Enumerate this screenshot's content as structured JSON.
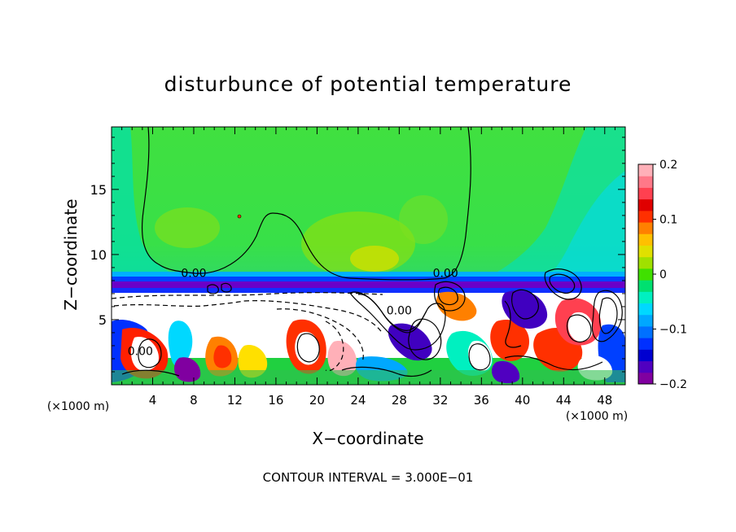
{
  "chart_data": {
    "type": "heatmap",
    "title": "disturbunce of potential temperature",
    "xlabel": "X−coordinate",
    "ylabel": "Z−coordinate",
    "x_unit_left": "(×1000 m)",
    "x_unit_right": "(×1000 m)",
    "footer": "CONTOUR INTERVAL = 3.000E−01",
    "xlim": [
      0,
      50
    ],
    "ylim": [
      0,
      19.8
    ],
    "x_ticks": [
      {
        "v": 4,
        "label": "4"
      },
      {
        "v": 8,
        "label": "8"
      },
      {
        "v": 12,
        "label": "12"
      },
      {
        "v": 16,
        "label": "16"
      },
      {
        "v": 20,
        "label": "20"
      },
      {
        "v": 24,
        "label": "24"
      },
      {
        "v": 28,
        "label": "28"
      },
      {
        "v": 32,
        "label": "32"
      },
      {
        "v": 36,
        "label": "36"
      },
      {
        "v": 40,
        "label": "40"
      },
      {
        "v": 44,
        "label": "44"
      },
      {
        "v": 48,
        "label": "48"
      }
    ],
    "y_ticks": [
      {
        "v": 5,
        "label": "5"
      },
      {
        "v": 10,
        "label": "10"
      },
      {
        "v": 15,
        "label": "15"
      }
    ],
    "colorbar": {
      "min": -0.2,
      "max": 0.2,
      "ticks": [
        {
          "v": 0.2,
          "label": "0.2"
        },
        {
          "v": 0.1,
          "label": "0.1"
        },
        {
          "v": 0,
          "label": "0"
        },
        {
          "v": -0.1,
          "label": "−0.1"
        },
        {
          "v": -0.2,
          "label": "−0.2"
        }
      ],
      "colors": [
        "#8000a0",
        "#5000c0",
        "#0000d0",
        "#0030ff",
        "#0070ff",
        "#00a8ff",
        "#00d8ff",
        "#00f0c0",
        "#00e070",
        "#40e000",
        "#a0e000",
        "#e0e000",
        "#ffc000",
        "#ff8000",
        "#ff3000",
        "#e00000",
        "#ff4050",
        "#ff7888",
        "#ffb0b8"
      ]
    },
    "contour_labels": [
      {
        "x": 8,
        "y": 8.6,
        "text": "0.00"
      },
      {
        "x": 32.5,
        "y": 8.6,
        "text": "0.00"
      },
      {
        "x": 28,
        "y": 5.7,
        "text": "0.00"
      },
      {
        "x": 2.8,
        "y": 2.6,
        "text": "0.00"
      }
    ],
    "field_regions": [
      {
        "x0": 0,
        "x1": 50,
        "y0": 8.6,
        "y1": 19.8,
        "value": 0.0
      },
      {
        "x0": 10,
        "x1": 20,
        "y0": 9.2,
        "y1": 13.5,
        "value": 0.02
      },
      {
        "x0": 22,
        "x1": 32,
        "y0": 8.6,
        "y1": 12,
        "value": 0.04
      },
      {
        "x0": 0,
        "x1": 50,
        "y0": 7.6,
        "y1": 8.6,
        "value": -0.2
      },
      {
        "x0": 0,
        "x1": 50,
        "y0": 0,
        "y1": 7.6,
        "value": 0.0
      }
    ]
  }
}
